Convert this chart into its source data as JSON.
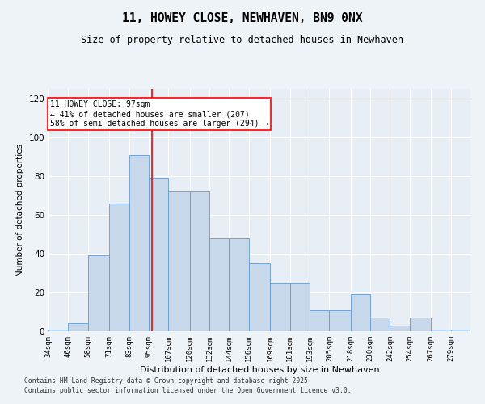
{
  "title": "11, HOWEY CLOSE, NEWHAVEN, BN9 0NX",
  "subtitle": "Size of property relative to detached houses in Newhaven",
  "xlabel": "Distribution of detached houses by size in Newhaven",
  "ylabel": "Number of detached properties",
  "bar_color": "#c8d8eb",
  "bar_edge_color": "#6699cc",
  "background_color": "#e8eef5",
  "fig_background_color": "#eef3f8",
  "grid_color": "#ffffff",
  "red_line_x": 97,
  "annotation_title": "11 HOWEY CLOSE: 97sqm",
  "annotation_line1": "← 41% of detached houses are smaller (207)",
  "annotation_line2": "58% of semi-detached houses are larger (294) →",
  "footer1": "Contains HM Land Registry data © Crown copyright and database right 2025.",
  "footer2": "Contains public sector information licensed under the Open Government Licence v3.0.",
  "bins": [
    34,
    46,
    58,
    71,
    83,
    95,
    107,
    120,
    132,
    144,
    156,
    169,
    181,
    193,
    205,
    218,
    230,
    242,
    254,
    267,
    279
  ],
  "bin_labels": [
    "34sqm",
    "46sqm",
    "58sqm",
    "71sqm",
    "83sqm",
    "95sqm",
    "107sqm",
    "120sqm",
    "132sqm",
    "144sqm",
    "156sqm",
    "169sqm",
    "181sqm",
    "193sqm",
    "205sqm",
    "218sqm",
    "230sqm",
    "242sqm",
    "254sqm",
    "267sqm",
    "279sqm"
  ],
  "counts": [
    1,
    4,
    39,
    66,
    91,
    79,
    72,
    72,
    48,
    48,
    35,
    25,
    25,
    11,
    11,
    19,
    7,
    3,
    7,
    1,
    1
  ],
  "ylim": [
    0,
    125
  ],
  "yticks": [
    0,
    20,
    40,
    60,
    80,
    100,
    120
  ]
}
